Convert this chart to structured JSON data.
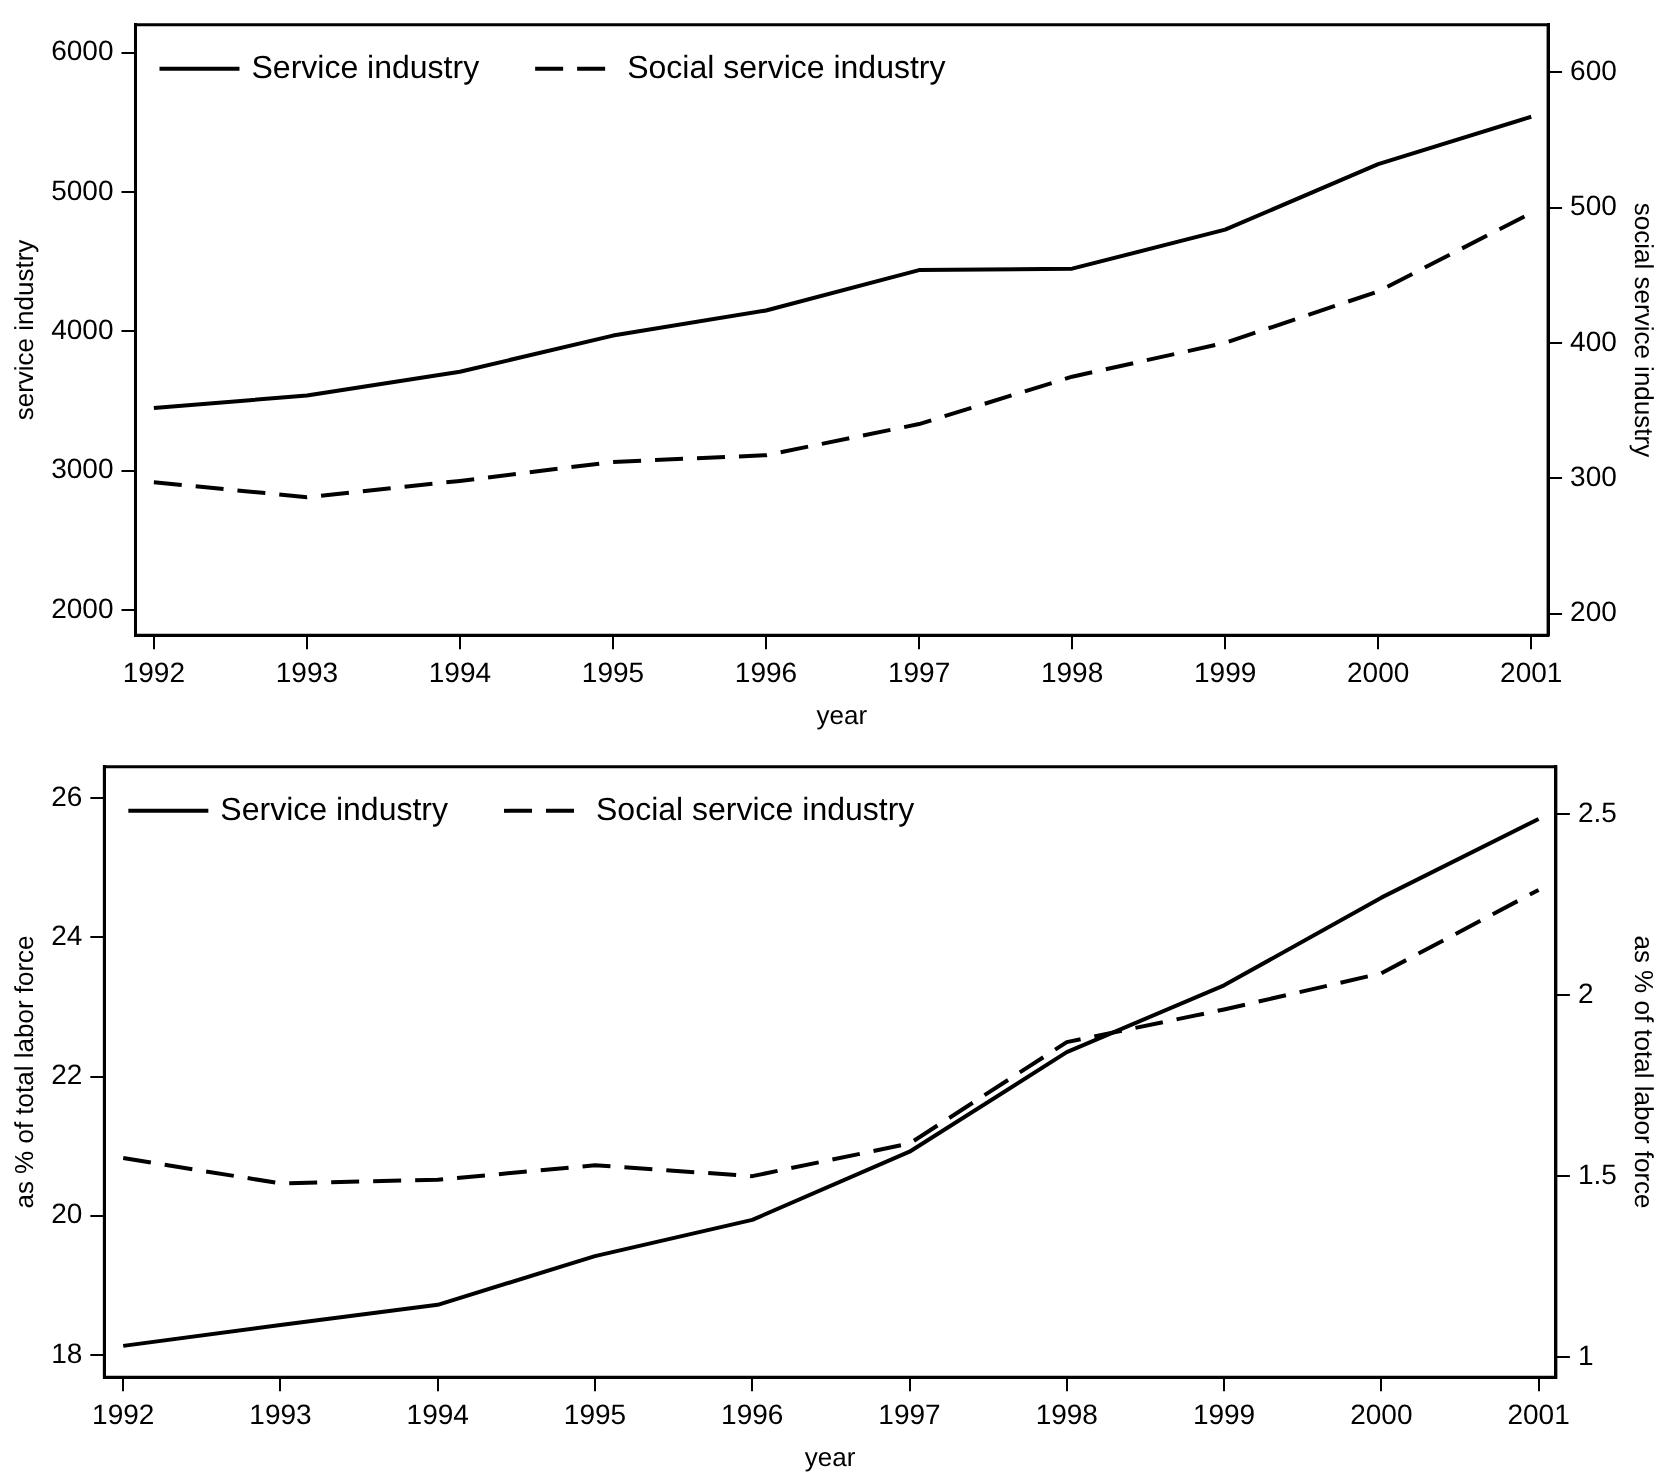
{
  "chart_data": [
    {
      "type": "line",
      "xlabel": "year",
      "ylabel": "service industry",
      "y2label": "social service industry",
      "x": [
        1992,
        1993,
        1994,
        1995,
        1996,
        1997,
        1998,
        1999,
        2000,
        2001
      ],
      "xlim": [
        1991.88,
        2001.11
      ],
      "xticks": [
        1992,
        1993,
        1994,
        1995,
        1996,
        1997,
        1998,
        1999,
        2000,
        2001
      ],
      "ylim": [
        1820,
        6200
      ],
      "yticks": [
        2000,
        3000,
        4000,
        5000,
        6000
      ],
      "y2lim": [
        184,
        635
      ],
      "y2ticks": [
        200,
        300,
        400,
        500,
        600
      ],
      "grid": false,
      "legend": "top left",
      "marker": "none",
      "series": [
        {
          "name": "Service industry",
          "color": "#000000",
          "line_style": "solid",
          "values": [
            3450,
            3540,
            3710,
            3970,
            4150,
            4440,
            4450,
            4730,
            5200,
            5540
          ]
        },
        {
          "name": "Social service industry",
          "color": "#000000",
          "line_style": "dashed",
          "axis": "y2",
          "values": [
            297,
            286,
            298,
            312,
            317,
            340,
            375,
            400,
            438,
            496
          ]
        }
      ]
    },
    {
      "type": "line",
      "xlabel": "year",
      "ylabel": "as % of total labor force",
      "y2label": "as % of total labor force",
      "x": [
        1992,
        1993,
        1994,
        1995,
        1996,
        1997,
        1998,
        1999,
        2000,
        2001
      ],
      "xlim": [
        1991.88,
        2001.11
      ],
      "xticks": [
        1992,
        1993,
        1994,
        1995,
        1996,
        1997,
        1998,
        1999,
        2000,
        2001
      ],
      "ylim": [
        17.68,
        26.45
      ],
      "yticks": [
        18,
        20,
        22,
        24,
        26
      ],
      "y2lim": [
        0.945,
        2.63
      ],
      "y2ticks": [
        1,
        1.5,
        2,
        2.5
      ],
      "grid": false,
      "legend": "top left",
      "marker": "none",
      "series": [
        {
          "name": "Service industry",
          "color": "#000000",
          "line_style": "solid",
          "values": [
            18.13,
            18.43,
            18.72,
            19.42,
            19.94,
            20.92,
            22.35,
            23.31,
            24.57,
            25.7
          ]
        },
        {
          "name": "Social service industry",
          "color": "#000000",
          "line_style": "dashed",
          "axis": "y2",
          "values": [
            1.55,
            1.48,
            1.49,
            1.53,
            1.5,
            1.59,
            1.87,
            1.96,
            2.06,
            2.29
          ]
        }
      ]
    }
  ]
}
